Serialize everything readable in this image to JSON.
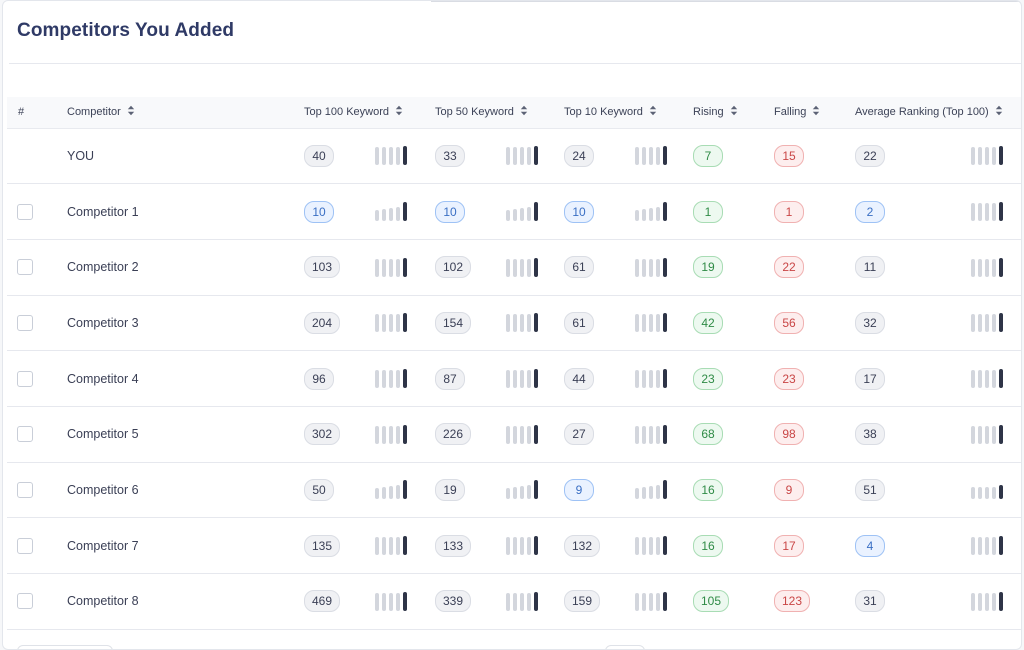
{
  "page": {
    "title": "Competitors You Added"
  },
  "table": {
    "headers": {
      "hash": "#",
      "competitor": "Competitor",
      "top100": "Top 100 Keyword",
      "top50": "Top 50 Keyword",
      "top10": "Top 10 Keyword",
      "rising": "Rising",
      "falling": "Falling",
      "avg": "Average Ranking (Top 100)"
    },
    "rows": [
      {
        "name": "YOU",
        "checkbox": false,
        "top100": {
          "value": "40",
          "style": "gray"
        },
        "top50": {
          "value": "33",
          "style": "gray"
        },
        "top10": {
          "value": "24",
          "style": "gray"
        },
        "rising": {
          "value": "7",
          "style": "green"
        },
        "falling": {
          "value": "15",
          "style": "red"
        },
        "avg": {
          "value": "22",
          "style": "gray"
        }
      },
      {
        "name": "Competitor 1",
        "checkbox": true,
        "top100": {
          "value": "10",
          "style": "blue"
        },
        "top50": {
          "value": "10",
          "style": "blue"
        },
        "top10": {
          "value": "10",
          "style": "blue"
        },
        "rising": {
          "value": "1",
          "style": "green"
        },
        "falling": {
          "value": "1",
          "style": "red"
        },
        "avg": {
          "value": "2",
          "style": "blue"
        }
      },
      {
        "name": "Competitor 2",
        "checkbox": true,
        "top100": {
          "value": "103",
          "style": "gray"
        },
        "top50": {
          "value": "102",
          "style": "gray"
        },
        "top10": {
          "value": "61",
          "style": "gray"
        },
        "rising": {
          "value": "19",
          "style": "green"
        },
        "falling": {
          "value": "22",
          "style": "red"
        },
        "avg": {
          "value": "11",
          "style": "gray"
        }
      },
      {
        "name": "Competitor 3",
        "checkbox": true,
        "top100": {
          "value": "204",
          "style": "gray"
        },
        "top50": {
          "value": "154",
          "style": "gray"
        },
        "top10": {
          "value": "61",
          "style": "gray"
        },
        "rising": {
          "value": "42",
          "style": "green"
        },
        "falling": {
          "value": "56",
          "style": "red"
        },
        "avg": {
          "value": "32",
          "style": "gray"
        }
      },
      {
        "name": "Competitor 4",
        "checkbox": true,
        "top100": {
          "value": "96",
          "style": "gray"
        },
        "top50": {
          "value": "87",
          "style": "gray"
        },
        "top10": {
          "value": "44",
          "style": "gray"
        },
        "rising": {
          "value": "23",
          "style": "green"
        },
        "falling": {
          "value": "23",
          "style": "red"
        },
        "avg": {
          "value": "17",
          "style": "gray"
        }
      },
      {
        "name": "Competitor 5",
        "checkbox": true,
        "top100": {
          "value": "302",
          "style": "gray"
        },
        "top50": {
          "value": "226",
          "style": "gray"
        },
        "top10": {
          "value": "27",
          "style": "gray"
        },
        "rising": {
          "value": "68",
          "style": "green"
        },
        "falling": {
          "value": "98",
          "style": "red"
        },
        "avg": {
          "value": "38",
          "style": "gray"
        }
      },
      {
        "name": "Competitor 6",
        "checkbox": true,
        "top100": {
          "value": "50",
          "style": "gray"
        },
        "top50": {
          "value": "19",
          "style": "gray"
        },
        "top10": {
          "value": "9",
          "style": "blue"
        },
        "rising": {
          "value": "16",
          "style": "green"
        },
        "falling": {
          "value": "9",
          "style": "red"
        },
        "avg": {
          "value": "51",
          "style": "gray"
        }
      },
      {
        "name": "Competitor 7",
        "checkbox": true,
        "top100": {
          "value": "135",
          "style": "gray"
        },
        "top50": {
          "value": "133",
          "style": "gray"
        },
        "top10": {
          "value": "132",
          "style": "gray"
        },
        "rising": {
          "value": "16",
          "style": "green"
        },
        "falling": {
          "value": "17",
          "style": "red"
        },
        "avg": {
          "value": "4",
          "style": "blue"
        }
      },
      {
        "name": "Competitor 8",
        "checkbox": true,
        "top100": {
          "value": "469",
          "style": "gray"
        },
        "top50": {
          "value": "339",
          "style": "gray"
        },
        "top10": {
          "value": "159",
          "style": "gray"
        },
        "rising": {
          "value": "105",
          "style": "green"
        },
        "falling": {
          "value": "123",
          "style": "red"
        },
        "avg": {
          "value": "31",
          "style": "gray"
        }
      }
    ]
  },
  "colors": {
    "title": "#2f3a66",
    "pill_blue": "#3a6fc4",
    "pill_green": "#2f8b46",
    "pill_red": "#c94646",
    "spark_bar": "#d3d6dd",
    "spark_bar_latest": "#2e3447"
  },
  "icons": {
    "sort": "sort-arrows-icon",
    "trend": "trend-bars-icon"
  }
}
